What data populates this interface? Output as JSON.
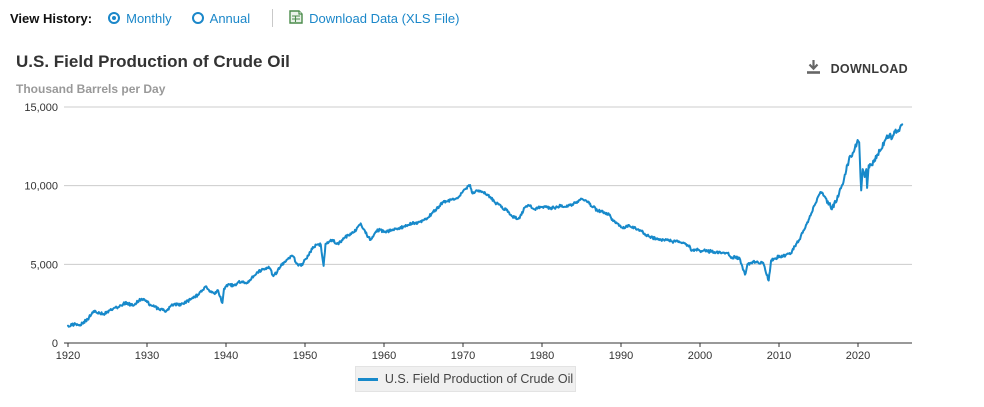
{
  "header": {
    "view_history_label": "View History:",
    "options": [
      {
        "label": "Monthly",
        "selected": true
      },
      {
        "label": "Annual",
        "selected": false
      }
    ],
    "download_link_label": "Download Data (XLS File)"
  },
  "title": "U.S. Field Production of Crude Oil",
  "subtitle": "Thousand Barrels per Day",
  "download_button_label": "DOWNLOAD",
  "legend": {
    "label": "U.S. Field Production of Crude Oil"
  },
  "colors": {
    "line": "#1789ca",
    "link_blue": "#1b87c9",
    "grid": "#cccccc",
    "axis": "#333333",
    "tick_label": "#333333",
    "xls_icon_green": "#4a8b4a",
    "download_icon_gray": "#666666",
    "legend_bg": "#f0f0f0"
  },
  "chart_data": {
    "type": "line",
    "title": "U.S. Field Production of Crude Oil",
    "ylabel": "Thousand Barrels per Day",
    "xlim": [
      1919.5,
      2026.8
    ],
    "ylim": [
      0,
      15000
    ],
    "grid": true,
    "legend_position": "bottom-center",
    "x_ticks": [
      1920,
      1930,
      1940,
      1950,
      1960,
      1970,
      1980,
      1990,
      2000,
      2010,
      2020
    ],
    "x_tick_labels": [
      "1920",
      "1930",
      "1940",
      "1950",
      "1960",
      "1970",
      "1980",
      "1990",
      "2000",
      "2010",
      "2020"
    ],
    "y_ticks": [
      0,
      5000,
      10000,
      15000
    ],
    "y_tick_labels": [
      "0",
      "5,000",
      "10,000",
      "15,000"
    ],
    "series": [
      {
        "name": "U.S. Field Production of Crude Oil",
        "units": "thousand barrels per day",
        "points": [
          [
            1920,
            1100
          ],
          [
            1920.5,
            1150
          ],
          [
            1921,
            1200
          ],
          [
            1921.5,
            1150
          ],
          [
            1922,
            1350
          ],
          [
            1922.5,
            1500
          ],
          [
            1923,
            1850
          ],
          [
            1923.4,
            2050
          ],
          [
            1924,
            1900
          ],
          [
            1924.5,
            1850
          ],
          [
            1925,
            2000
          ],
          [
            1925.5,
            2100
          ],
          [
            1926,
            2250
          ],
          [
            1926.5,
            2300
          ],
          [
            1927,
            2500
          ],
          [
            1927.5,
            2550
          ],
          [
            1928,
            2400
          ],
          [
            1928.5,
            2500
          ],
          [
            1929,
            2700
          ],
          [
            1929.4,
            2780
          ],
          [
            1930,
            2600
          ],
          [
            1930.5,
            2400
          ],
          [
            1931,
            2300
          ],
          [
            1931.5,
            2150
          ],
          [
            1932,
            2100
          ],
          [
            1932.4,
            2000
          ],
          [
            1933,
            2350
          ],
          [
            1933.5,
            2500
          ],
          [
            1934,
            2400
          ],
          [
            1934.5,
            2500
          ],
          [
            1935,
            2650
          ],
          [
            1935.5,
            2750
          ],
          [
            1936,
            2950
          ],
          [
            1936.5,
            3050
          ],
          [
            1937,
            3350
          ],
          [
            1937.5,
            3600
          ],
          [
            1938,
            3250
          ],
          [
            1938.5,
            3150
          ],
          [
            1939,
            3350
          ],
          [
            1939.55,
            2550
          ],
          [
            1939.75,
            3450
          ],
          [
            1940,
            3600
          ],
          [
            1940.5,
            3700
          ],
          [
            1941,
            3650
          ],
          [
            1941.5,
            3850
          ],
          [
            1942,
            3900
          ],
          [
            1942.5,
            3800
          ],
          [
            1943,
            4000
          ],
          [
            1943.5,
            4250
          ],
          [
            1944,
            4500
          ],
          [
            1944.5,
            4650
          ],
          [
            1945,
            4750
          ],
          [
            1945.4,
            4850
          ],
          [
            1946,
            4250
          ],
          [
            1946.5,
            4550
          ],
          [
            1947,
            5000
          ],
          [
            1947.5,
            5150
          ],
          [
            1948,
            5400
          ],
          [
            1948.4,
            5550
          ],
          [
            1949,
            5050
          ],
          [
            1949.5,
            4900
          ],
          [
            1950,
            5300
          ],
          [
            1950.5,
            5600
          ],
          [
            1951,
            6100
          ],
          [
            1951.5,
            6250
          ],
          [
            1952,
            6250
          ],
          [
            1952.35,
            4900
          ],
          [
            1952.6,
            6300
          ],
          [
            1953,
            6400
          ],
          [
            1953.5,
            6550
          ],
          [
            1954,
            6300
          ],
          [
            1954.5,
            6400
          ],
          [
            1955,
            6700
          ],
          [
            1955.5,
            6850
          ],
          [
            1956,
            7050
          ],
          [
            1956.5,
            7200
          ],
          [
            1957.05,
            7600
          ],
          [
            1957.5,
            7200
          ],
          [
            1958,
            6750
          ],
          [
            1958.3,
            6550
          ],
          [
            1958.8,
            6950
          ],
          [
            1959,
            7100
          ],
          [
            1959.5,
            7200
          ],
          [
            1960,
            7050
          ],
          [
            1960.5,
            7100
          ],
          [
            1961,
            7150
          ],
          [
            1961.5,
            7250
          ],
          [
            1962,
            7300
          ],
          [
            1962.5,
            7400
          ],
          [
            1963,
            7500
          ],
          [
            1963.5,
            7600
          ],
          [
            1964,
            7600
          ],
          [
            1964.5,
            7700
          ],
          [
            1965,
            7800
          ],
          [
            1965.5,
            7950
          ],
          [
            1966,
            8200
          ],
          [
            1966.5,
            8450
          ],
          [
            1967,
            8700
          ],
          [
            1967.5,
            8950
          ],
          [
            1968,
            9000
          ],
          [
            1968.5,
            9100
          ],
          [
            1969,
            9150
          ],
          [
            1969.5,
            9300
          ],
          [
            1970,
            9650
          ],
          [
            1970.9,
            10040
          ],
          [
            1971.2,
            9500
          ],
          [
            1971.6,
            9650
          ],
          [
            1972,
            9700
          ],
          [
            1972.5,
            9600
          ],
          [
            1973,
            9400
          ],
          [
            1973.5,
            9250
          ],
          [
            1974,
            8950
          ],
          [
            1974.5,
            8800
          ],
          [
            1975,
            8550
          ],
          [
            1975.5,
            8450
          ],
          [
            1976,
            8150
          ],
          [
            1976.6,
            7950
          ],
          [
            1977,
            7900
          ],
          [
            1977.4,
            8150
          ],
          [
            1977.8,
            8600
          ],
          [
            1978,
            8700
          ],
          [
            1978.5,
            8750
          ],
          [
            1979,
            8500
          ],
          [
            1979.5,
            8600
          ],
          [
            1980,
            8650
          ],
          [
            1980.5,
            8700
          ],
          [
            1981,
            8550
          ],
          [
            1981.5,
            8600
          ],
          [
            1982,
            8650
          ],
          [
            1982.5,
            8750
          ],
          [
            1983,
            8650
          ],
          [
            1983.5,
            8750
          ],
          [
            1984,
            8850
          ],
          [
            1984.5,
            9000
          ],
          [
            1985.1,
            9150
          ],
          [
            1985.6,
            9050
          ],
          [
            1986,
            8850
          ],
          [
            1986.5,
            8650
          ],
          [
            1987,
            8400
          ],
          [
            1987.5,
            8350
          ],
          [
            1988,
            8250
          ],
          [
            1988.5,
            8150
          ],
          [
            1989,
            7750
          ],
          [
            1989.5,
            7600
          ],
          [
            1990,
            7350
          ],
          [
            1990.5,
            7300
          ],
          [
            1991,
            7500
          ],
          [
            1991.5,
            7400
          ],
          [
            1992,
            7200
          ],
          [
            1992.5,
            7150
          ],
          [
            1993,
            6950
          ],
          [
            1993.5,
            6800
          ],
          [
            1994,
            6700
          ],
          [
            1994.5,
            6600
          ],
          [
            1995,
            6600
          ],
          [
            1995.5,
            6500
          ],
          [
            1996,
            6550
          ],
          [
            1996.5,
            6450
          ],
          [
            1997,
            6500
          ],
          [
            1997.5,
            6400
          ],
          [
            1998,
            6350
          ],
          [
            1998.5,
            6200
          ],
          [
            1999,
            5900
          ],
          [
            1999.5,
            5950
          ],
          [
            2000,
            5850
          ],
          [
            2000.5,
            5900
          ],
          [
            2001,
            5800
          ],
          [
            2001.5,
            5850
          ],
          [
            2002,
            5750
          ],
          [
            2002.5,
            5800
          ],
          [
            2003,
            5750
          ],
          [
            2003.5,
            5700
          ],
          [
            2004,
            5450
          ],
          [
            2004.5,
            5450
          ],
          [
            2005,
            5400
          ],
          [
            2005.7,
            4350
          ],
          [
            2006,
            5000
          ],
          [
            2006.5,
            5100
          ],
          [
            2007,
            5150
          ],
          [
            2007.5,
            5050
          ],
          [
            2008,
            5100
          ],
          [
            2008.7,
            3970
          ],
          [
            2009,
            5250
          ],
          [
            2009.5,
            5350
          ],
          [
            2010,
            5550
          ],
          [
            2010.5,
            5500
          ],
          [
            2011,
            5650
          ],
          [
            2011.5,
            5700
          ],
          [
            2012,
            6150
          ],
          [
            2012.5,
            6500
          ],
          [
            2013,
            7000
          ],
          [
            2013.5,
            7550
          ],
          [
            2014,
            8100
          ],
          [
            2014.5,
            8750
          ],
          [
            2015,
            9350
          ],
          [
            2015.3,
            9600
          ],
          [
            2015.7,
            9350
          ],
          [
            2016,
            9150
          ],
          [
            2016.7,
            8500
          ],
          [
            2017,
            8900
          ],
          [
            2017.5,
            9300
          ],
          [
            2018,
            10050
          ],
          [
            2018.5,
            10950
          ],
          [
            2019,
            11900
          ],
          [
            2019.5,
            12200
          ],
          [
            2019.95,
            12900
          ],
          [
            2020.15,
            12750
          ],
          [
            2020.4,
            9700
          ],
          [
            2020.6,
            11050
          ],
          [
            2020.85,
            10550
          ],
          [
            2021.05,
            11050
          ],
          [
            2021.15,
            9860
          ],
          [
            2021.35,
            11300
          ],
          [
            2021.6,
            11300
          ],
          [
            2022,
            11500
          ],
          [
            2022.5,
            12000
          ],
          [
            2023,
            12350
          ],
          [
            2023.5,
            12950
          ],
          [
            2024,
            13250
          ],
          [
            2024.3,
            13000
          ],
          [
            2024.6,
            13450
          ],
          [
            2025,
            13500
          ],
          [
            2025.3,
            13650
          ],
          [
            2025.6,
            13900
          ]
        ]
      }
    ]
  }
}
